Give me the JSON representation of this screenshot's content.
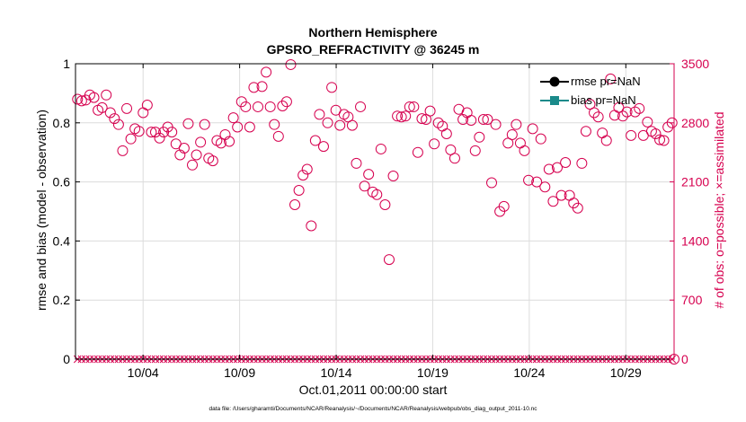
{
  "chart_data": {
    "type": "scatter",
    "title": "Northern Hemisphere",
    "subtitle": "GPSRO_REFRACTIVITY @ 36245 m",
    "ylabel_left": "rmse and bias (model - observation)",
    "ylabel_right": "# of obs: o=possible; ×=assimilated",
    "xlabel": "Oct.01,2011 00:00:00 start",
    "footnote": "data file: /Users/gharamti/Documents/NCAR/Reanalysis/~/Documents/NCAR/Reanalysis/webpub/obs_diag_output_2011-10.nc",
    "ylim_left": [
      0,
      1
    ],
    "ylim_right": [
      0,
      3500
    ],
    "xlim_days": [
      0,
      31
    ],
    "yticks_left": [
      "0",
      "0.2",
      "0.4",
      "0.6",
      "0.8",
      "1"
    ],
    "yticks_right": [
      "0",
      "700",
      "1400",
      "2100",
      "2800",
      "3500"
    ],
    "xticks": [
      {
        "day": 3.5,
        "label": "10/04"
      },
      {
        "day": 8.5,
        "label": "10/09"
      },
      {
        "day": 13.5,
        "label": "10/14"
      },
      {
        "day": 18.5,
        "label": "10/19"
      },
      {
        "day": 23.5,
        "label": "10/24"
      },
      {
        "day": 28.5,
        "label": "10/29"
      }
    ],
    "legend": [
      {
        "label": "rmse pr=NaN",
        "color": "#000000",
        "marker": "circle"
      },
      {
        "label": "bias pr=NaN",
        "color": "#1a8a8a",
        "marker": "square"
      }
    ],
    "colors": {
      "right_axis": "#d6004f",
      "grid": "#dcdcdc"
    },
    "series": [
      {
        "name": "possible",
        "marker": "circle",
        "values": [
          3080,
          3060,
          3070,
          3130,
          3100,
          2950,
          2980,
          3130,
          2920,
          2850,
          2780,
          2470,
          2970,
          2610,
          2730,
          2700,
          2920,
          3010,
          2690,
          2690,
          2620,
          2690,
          2750,
          2690,
          2550,
          2420,
          2500,
          2790,
          2300,
          2420,
          2570,
          2780,
          2380,
          2350,
          2590,
          2560,
          2660,
          2580,
          2860,
          2750,
          3050,
          2990,
          2750,
          3220,
          2990,
          3230,
          3400,
          2990,
          2780,
          2640,
          3000,
          3050,
          3490,
          1830,
          2000,
          2180,
          2250,
          1580,
          2590,
          2900,
          2520,
          2800,
          3220,
          2950,
          2770,
          2900,
          2870,
          2770,
          2320,
          2990,
          2050,
          2190,
          1980,
          1950,
          2490,
          1830,
          1180,
          2170,
          2880,
          2870,
          2880,
          2990,
          2990,
          2450,
          2850,
          2840,
          2940,
          2550,
          2800,
          2760,
          2670,
          2480,
          2380,
          2960,
          2840,
          2920,
          2830,
          2470,
          2630,
          2840,
          2840,
          2090,
          2780,
          1750,
          1810,
          2560,
          2660,
          2780,
          2560,
          2470,
          2120,
          2730,
          2100,
          2610,
          2040,
          2250,
          1870,
          2270,
          1940,
          2330,
          1940,
          1850,
          1790,
          2320,
          2700,
          3020,
          2920,
          2870,
          2680,
          2590,
          3320,
          2890,
          2980,
          2880,
          2930,
          2650,
          2930,
          2970,
          2650,
          2810,
          2700,
          2670,
          2600,
          2590,
          2750,
          2800
        ]
      }
    ]
  }
}
